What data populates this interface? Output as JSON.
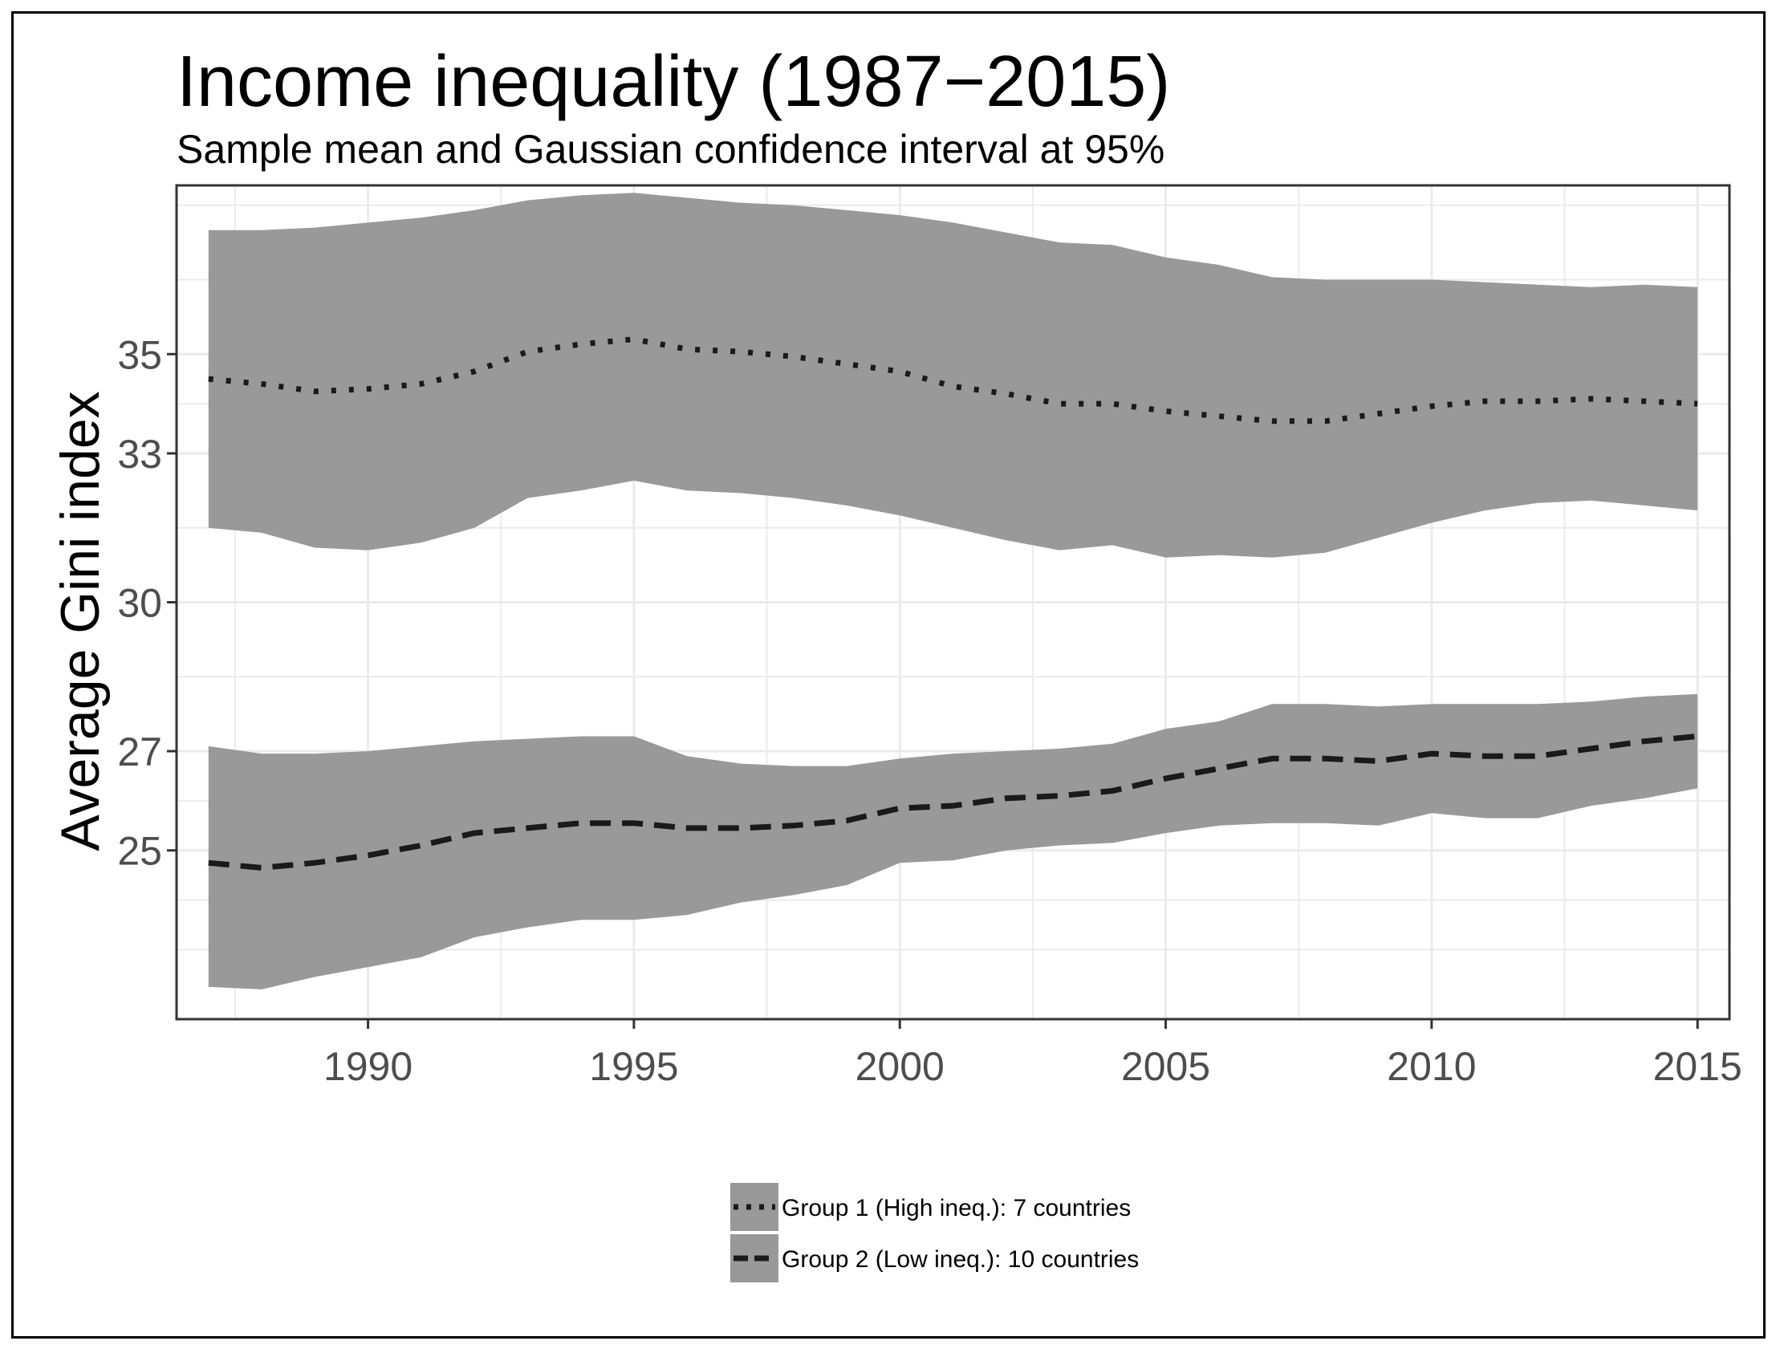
{
  "chart_data": {
    "type": "area",
    "title": "Income inequality (1987−2015)",
    "subtitle": "Sample mean and Gaussian confidence interval at 95%",
    "xlabel": "",
    "ylabel": "Average Gini index",
    "xlim": [
      1986.4,
      2015.6
    ],
    "ylim": [
      21.6,
      38.4
    ],
    "x_ticks": [
      1990,
      1995,
      2000,
      2005,
      2010,
      2015
    ],
    "x_tick_labels": [
      "1990",
      "1995",
      "2000",
      "2005",
      "2010",
      "2015"
    ],
    "y_ticks": [
      25,
      27,
      30,
      33,
      35
    ],
    "y_tick_labels": [
      "25",
      "27",
      "30",
      "33",
      "35"
    ],
    "grid": true,
    "legend_position": "bottom",
    "x": [
      1987,
      1988,
      1989,
      1990,
      1991,
      1992,
      1993,
      1994,
      1995,
      1996,
      1997,
      1998,
      1999,
      2000,
      2001,
      2002,
      2003,
      2004,
      2005,
      2006,
      2007,
      2008,
      2009,
      2010,
      2011,
      2012,
      2013,
      2014,
      2015
    ],
    "series": [
      {
        "name": "Group 1 (High ineq.): 7 countries",
        "line_style": "dotted",
        "mean": [
          34.5,
          34.4,
          34.25,
          34.3,
          34.4,
          34.65,
          35.05,
          35.2,
          35.3,
          35.1,
          35.05,
          34.95,
          34.8,
          34.65,
          34.35,
          34.2,
          34.0,
          34.0,
          33.85,
          33.75,
          33.65,
          33.65,
          33.8,
          33.95,
          34.05,
          34.05,
          34.1,
          34.05,
          34.0
        ],
        "lower": [
          31.5,
          31.4,
          31.1,
          31.05,
          31.2,
          31.5,
          32.1,
          32.25,
          32.45,
          32.25,
          32.2,
          32.1,
          31.95,
          31.75,
          31.5,
          31.25,
          31.05,
          31.15,
          30.9,
          30.95,
          30.9,
          31.0,
          31.3,
          31.6,
          31.85,
          32.0,
          32.05,
          31.95,
          31.85
        ],
        "upper": [
          37.5,
          37.5,
          37.55,
          37.65,
          37.75,
          37.9,
          38.1,
          38.2,
          38.25,
          38.15,
          38.05,
          38.0,
          37.9,
          37.8,
          37.65,
          37.45,
          37.25,
          37.2,
          36.95,
          36.8,
          36.55,
          36.5,
          36.5,
          36.5,
          36.45,
          36.4,
          36.35,
          36.4,
          36.35
        ]
      },
      {
        "name": "Group 2 (Low ineq.): 10 countries",
        "line_style": "dashed",
        "mean": [
          24.75,
          24.65,
          24.75,
          24.9,
          25.1,
          25.35,
          25.45,
          25.55,
          25.55,
          25.45,
          25.45,
          25.5,
          25.6,
          25.85,
          25.9,
          26.05,
          26.1,
          26.2,
          26.45,
          26.65,
          26.85,
          26.85,
          26.8,
          26.95,
          26.9,
          26.9,
          27.05,
          27.2,
          27.3
        ],
        "lower": [
          22.25,
          22.2,
          22.45,
          22.65,
          22.85,
          23.25,
          23.45,
          23.6,
          23.6,
          23.7,
          23.95,
          24.1,
          24.3,
          24.75,
          24.8,
          25.0,
          25.1,
          25.15,
          25.35,
          25.5,
          25.55,
          25.55,
          25.5,
          25.75,
          25.65,
          25.65,
          25.9,
          26.05,
          26.25
        ],
        "upper": [
          27.1,
          26.95,
          26.95,
          27.0,
          27.1,
          27.2,
          27.25,
          27.3,
          27.3,
          26.9,
          26.75,
          26.7,
          26.7,
          26.85,
          26.95,
          27.0,
          27.05,
          27.15,
          27.45,
          27.6,
          27.95,
          27.95,
          27.9,
          27.95,
          27.95,
          27.95,
          28.0,
          28.1,
          28.15
        ]
      }
    ]
  },
  "colors": {
    "ribbon": "#999999",
    "line": "#1a1a1a",
    "grid": "#ebebeb",
    "frame": "#333333"
  }
}
